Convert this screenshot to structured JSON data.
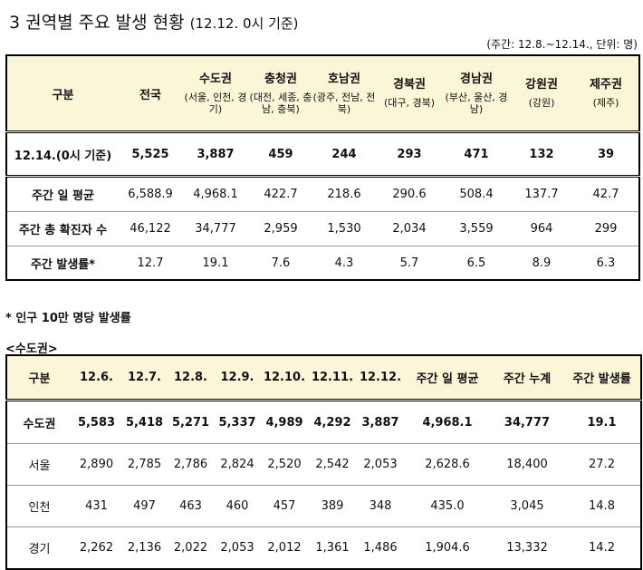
{
  "title": {
    "main": "3 권역별 주요 발생 현황",
    "sub": "(12.12. 0시 기준)"
  },
  "unit_note": "(주간: 12.8.~12.14., 단위: 명)",
  "table1": {
    "header": {
      "label": "구분",
      "national": "전국",
      "regions": [
        {
          "name": "수도권",
          "sub": "(서울, 인천, 경기)"
        },
        {
          "name": "충청권",
          "sub": "(대전, 세종, 충남, 충북)"
        },
        {
          "name": "호남권",
          "sub": "(광주, 전남, 전북)"
        },
        {
          "name": "경북권",
          "sub": "(대구, 경북)"
        },
        {
          "name": "경남권",
          "sub": "(부산, 울산, 경남)"
        },
        {
          "name": "강원권",
          "sub": "(강원)"
        },
        {
          "name": "제주권",
          "sub": "(제주)"
        }
      ]
    },
    "rows": [
      {
        "label": "12.14.(0시 기준)",
        "values": [
          "5,525",
          "3,887",
          "459",
          "244",
          "293",
          "471",
          "132",
          "39"
        ]
      },
      {
        "label": "주간 일 평균",
        "values": [
          "6,588.9",
          "4,968.1",
          "422.7",
          "218.6",
          "290.6",
          "508.4",
          "137.7",
          "42.7"
        ]
      },
      {
        "label": "주간 총 확진자 수",
        "values": [
          "46,122",
          "34,777",
          "2,959",
          "1,530",
          "2,034",
          "3,559",
          "964",
          "299"
        ]
      },
      {
        "label": "주간 발생률*",
        "values": [
          "12.7",
          "19.1",
          "7.6",
          "4.3",
          "5.7",
          "6.5",
          "8.9",
          "6.3"
        ]
      }
    ]
  },
  "footnote": "* 인구 10만 명당 발생률",
  "section_label": "<수도권>",
  "table2": {
    "headers": [
      "구분",
      "12.6.",
      "12.7.",
      "12.8.",
      "12.9.",
      "12.10.",
      "12.11.",
      "12.12.",
      "주간 일 평균",
      "주간 누계",
      "주간 발생률"
    ],
    "rows": [
      {
        "label": "수도권",
        "values": [
          "5,583",
          "5,418",
          "5,271",
          "5,337",
          "4,989",
          "4,292",
          "3,887",
          "4,968.1",
          "34,777",
          "19.1"
        ]
      },
      {
        "label": "서울",
        "values": [
          "2,890",
          "2,785",
          "2,786",
          "2,824",
          "2,520",
          "2,542",
          "2,053",
          "2,628.6",
          "18,400",
          "27.2"
        ]
      },
      {
        "label": "인천",
        "values": [
          "431",
          "497",
          "463",
          "460",
          "457",
          "389",
          "348",
          "435.0",
          "3,045",
          "14.8"
        ]
      },
      {
        "label": "경기",
        "values": [
          "2,262",
          "2,136",
          "2,022",
          "2,053",
          "2,012",
          "1,361",
          "1,486",
          "1,904.6",
          "13,332",
          "14.2"
        ]
      }
    ]
  }
}
